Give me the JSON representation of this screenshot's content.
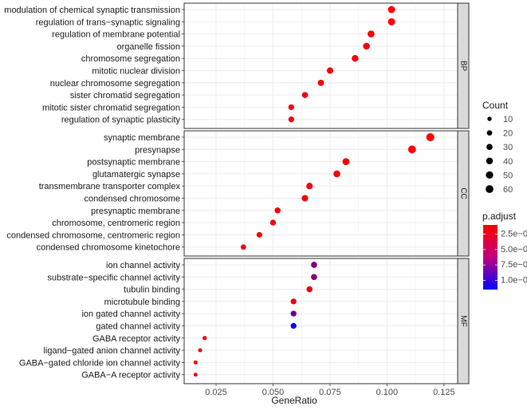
{
  "chart_data": {
    "type": "scatter",
    "xlabel": "GeneRatio",
    "xlim": [
      0.011,
      0.131
    ],
    "xticks": [
      "0.025",
      "0.050",
      "0.075",
      "0.100",
      "0.125"
    ],
    "xtick_values": [
      0.025,
      0.05,
      0.075,
      0.1,
      0.125
    ],
    "grid": true,
    "panels": [
      {
        "name": "BP",
        "terms": [
          {
            "term": "modulation of chemical synaptic transmission",
            "gene_ratio": 0.102,
            "count": 46,
            "p_adjust": 1e-07
          },
          {
            "term": "regulation of trans−synaptic signaling",
            "gene_ratio": 0.102,
            "count": 46,
            "p_adjust": 1e-07
          },
          {
            "term": "regulation of membrane potential",
            "gene_ratio": 0.093,
            "count": 42,
            "p_adjust": 1.2e-07
          },
          {
            "term": "organelle fission",
            "gene_ratio": 0.091,
            "count": 41,
            "p_adjust": 1.5e-07
          },
          {
            "term": "chromosome segregation",
            "gene_ratio": 0.086,
            "count": 39,
            "p_adjust": 1.5e-07
          },
          {
            "term": "mitotic nuclear division",
            "gene_ratio": 0.075,
            "count": 34,
            "p_adjust": 1.5e-07
          },
          {
            "term": "nuclear chromosome segregation",
            "gene_ratio": 0.071,
            "count": 32,
            "p_adjust": 1.5e-07
          },
          {
            "term": "sister chromatid segregation",
            "gene_ratio": 0.064,
            "count": 29,
            "p_adjust": 1.5e-07
          },
          {
            "term": "mitotic sister chromatid segregation",
            "gene_ratio": 0.058,
            "count": 26,
            "p_adjust": 1.5e-07
          },
          {
            "term": "regulation of synaptic plasticity",
            "gene_ratio": 0.058,
            "count": 26,
            "p_adjust": 1.5e-07
          }
        ]
      },
      {
        "name": "CC",
        "terms": [
          {
            "term": "synaptic membrane",
            "gene_ratio": 0.119,
            "count": 64,
            "p_adjust": 1e-07
          },
          {
            "term": "presynapse",
            "gene_ratio": 0.111,
            "count": 60,
            "p_adjust": 1e-07
          },
          {
            "term": "postsynaptic membrane",
            "gene_ratio": 0.082,
            "count": 44,
            "p_adjust": 1.2e-07
          },
          {
            "term": "glutamatergic synapse",
            "gene_ratio": 0.078,
            "count": 42,
            "p_adjust": 1.2e-07
          },
          {
            "term": "transmembrane transporter complex",
            "gene_ratio": 0.066,
            "count": 36,
            "p_adjust": 1.5e-07
          },
          {
            "term": "condensed chromosome",
            "gene_ratio": 0.064,
            "count": 35,
            "p_adjust": 1.5e-07
          },
          {
            "term": "presynaptic membrane",
            "gene_ratio": 0.052,
            "count": 28,
            "p_adjust": 1.5e-07
          },
          {
            "term": "chromosome, centromeric region",
            "gene_ratio": 0.05,
            "count": 27,
            "p_adjust": 1.5e-07
          },
          {
            "term": "condensed chromosome, centromeric region",
            "gene_ratio": 0.044,
            "count": 24,
            "p_adjust": 1.5e-07
          },
          {
            "term": "condensed chromosome kinetochore",
            "gene_ratio": 0.037,
            "count": 20,
            "p_adjust": 1.5e-07
          }
        ]
      },
      {
        "name": "MF",
        "terms": [
          {
            "term": "ion channel activity",
            "gene_ratio": 0.068,
            "count": 30,
            "p_adjust": 6e-07
          },
          {
            "term": "substrate−specific channel activity",
            "gene_ratio": 0.068,
            "count": 30,
            "p_adjust": 6e-07
          },
          {
            "term": "tubulin binding",
            "gene_ratio": 0.066,
            "count": 29,
            "p_adjust": 2e-07
          },
          {
            "term": "microtubule binding",
            "gene_ratio": 0.059,
            "count": 26,
            "p_adjust": 2e-07
          },
          {
            "term": "ion gated channel activity",
            "gene_ratio": 0.059,
            "count": 26,
            "p_adjust": 7e-07
          },
          {
            "term": "gated channel activity",
            "gene_ratio": 0.059,
            "count": 26,
            "p_adjust": 1.1e-06
          },
          {
            "term": "GABA receptor activity",
            "gene_ratio": 0.02,
            "count": 9,
            "p_adjust": 1.5e-07
          },
          {
            "term": "ligand−gated anion channel activity",
            "gene_ratio": 0.018,
            "count": 8,
            "p_adjust": 1.5e-07
          },
          {
            "term": "GABA−gated chloride ion channel activity",
            "gene_ratio": 0.016,
            "count": 7,
            "p_adjust": 1.5e-07
          },
          {
            "term": "GABA−A receptor activity",
            "gene_ratio": 0.016,
            "count": 7,
            "p_adjust": 1.5e-07
          }
        ]
      }
    ],
    "legend_count": {
      "title": "Count",
      "values": [
        10,
        20,
        30,
        40,
        50,
        60
      ],
      "labels": [
        "10",
        "20",
        "30",
        "40",
        "50",
        "60"
      ],
      "placement": "right"
    },
    "legend_color": {
      "title": "p.adjust",
      "range": [
        1e-07,
        1.15e-06
      ],
      "tick_values": [
        2.5e-07,
        5e-07,
        7.5e-07,
        1e-06
      ],
      "tick_labels": [
        "2.5e−07",
        "5.0e−07",
        "7.5e−07",
        "1.0e−06"
      ],
      "low_color": "#ff0000",
      "high_color": "#0000ff",
      "placement": "right"
    },
    "colors": {
      "panel_background": "#ffffff",
      "grid": "#ebebeb",
      "strip_background": "#d9d9d9",
      "border": "#333333"
    }
  }
}
